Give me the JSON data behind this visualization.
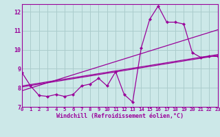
{
  "xlabel": "Windchill (Refroidissement éolien,°C)",
  "bg_color": "#cce8e8",
  "line_color": "#990099",
  "grid_color": "#aacccc",
  "x_min": 0,
  "x_max": 23,
  "y_min": 7,
  "y_max": 12.4,
  "y_tick_min": 7,
  "y_tick_max": 12,
  "x_ticks": [
    0,
    1,
    2,
    3,
    4,
    5,
    6,
    7,
    8,
    9,
    10,
    11,
    12,
    13,
    14,
    15,
    16,
    17,
    18,
    19,
    20,
    21,
    22,
    23
  ],
  "y_ticks": [
    7,
    8,
    9,
    10,
    11,
    12
  ],
  "data_x": [
    0,
    1,
    2,
    3,
    4,
    5,
    6,
    7,
    8,
    9,
    10,
    11,
    12,
    13,
    14,
    15,
    16,
    17,
    18,
    19,
    20,
    21,
    22,
    23
  ],
  "data_y": [
    8.8,
    8.1,
    7.6,
    7.55,
    7.65,
    7.55,
    7.65,
    8.1,
    8.2,
    8.5,
    8.1,
    8.85,
    7.65,
    7.25,
    10.1,
    11.6,
    12.3,
    11.45,
    11.45,
    11.35,
    9.85,
    9.6,
    9.65,
    9.65
  ],
  "trend1_x": [
    0,
    23
  ],
  "trend1_y": [
    8.05,
    9.7
  ],
  "trend2_x": [
    0,
    23
  ],
  "trend2_y": [
    8.1,
    9.75
  ],
  "trend3_x": [
    0,
    23
  ],
  "trend3_y": [
    7.85,
    11.05
  ]
}
